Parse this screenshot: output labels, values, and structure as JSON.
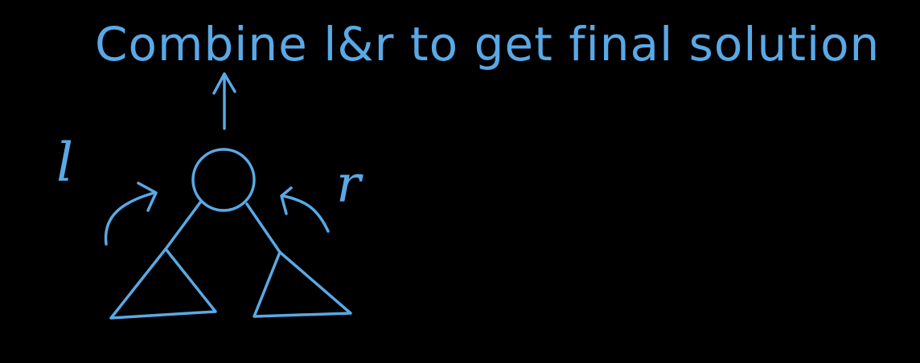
{
  "caption": "Combine l&r to get final solution",
  "left_label": "l",
  "right_label": "r",
  "colors": {
    "background": "#000000",
    "ink": "#5aa9e6"
  }
}
